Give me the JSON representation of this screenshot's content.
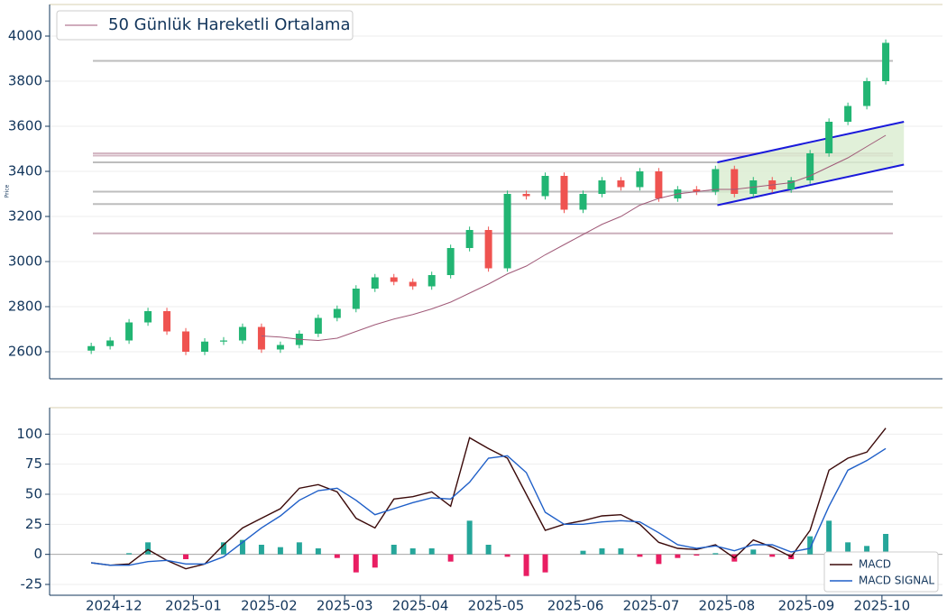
{
  "chart_data": [
    {
      "type": "candlestick",
      "y_label": "Price",
      "legend": "upper left",
      "x": [
        0,
        5,
        10,
        15,
        20,
        25,
        30,
        35,
        40,
        45,
        50,
        55,
        60,
        65,
        70,
        75,
        80,
        85,
        90,
        95,
        100,
        105,
        110,
        115,
        120,
        125,
        130,
        135,
        140,
        145,
        150,
        155,
        160,
        165,
        170,
        175,
        180,
        185,
        190,
        195,
        200,
        205,
        210
      ],
      "open": [
        2605,
        2625,
        2650,
        2730,
        2780,
        2690,
        2600,
        2645,
        2650,
        2710,
        2610,
        2630,
        2680,
        2750,
        2790,
        2880,
        2930,
        2910,
        2890,
        2940,
        3060,
        3140,
        2970,
        3300,
        3290,
        3380,
        3230,
        3300,
        3360,
        3330,
        3400,
        3280,
        3320,
        3310,
        3410,
        3300,
        3360,
        3320,
        3360,
        3480,
        3620,
        3690,
        3800
      ],
      "high": [
        2640,
        2665,
        2745,
        2795,
        2795,
        2705,
        2660,
        2665,
        2725,
        2725,
        2645,
        2695,
        2765,
        2805,
        2895,
        2945,
        2945,
        2925,
        2955,
        3075,
        3155,
        3155,
        3315,
        3315,
        3395,
        3395,
        3315,
        3375,
        3375,
        3415,
        3415,
        3335,
        3335,
        3425,
        3425,
        3375,
        3375,
        3375,
        3495,
        3635,
        3705,
        3815,
        3985
      ],
      "low": [
        2590,
        2610,
        2635,
        2715,
        2675,
        2585,
        2585,
        2630,
        2635,
        2595,
        2595,
        2615,
        2665,
        2735,
        2775,
        2865,
        2895,
        2875,
        2875,
        2925,
        3045,
        2955,
        2955,
        3275,
        3275,
        3215,
        3215,
        3285,
        3315,
        3315,
        3265,
        3265,
        3295,
        3295,
        3285,
        3285,
        3305,
        3305,
        3345,
        3465,
        3605,
        3675,
        3785
      ],
      "close": [
        2625,
        2650,
        2730,
        2780,
        2690,
        2600,
        2645,
        2650,
        2710,
        2610,
        2630,
        2680,
        2750,
        2790,
        2880,
        2930,
        2910,
        2890,
        2940,
        3060,
        3140,
        2970,
        3300,
        3290,
        3380,
        3230,
        3300,
        3360,
        3330,
        3400,
        3280,
        3320,
        3310,
        3410,
        3300,
        3360,
        3320,
        3360,
        3480,
        3620,
        3690,
        3800,
        3970
      ],
      "up_color": "#22b573",
      "down_color": "#ef5350",
      "series": [
        {
          "name": "50 Günlük Hareketli Ortalama",
          "color": "#a05a78",
          "values": [
            null,
            null,
            null,
            null,
            null,
            null,
            null,
            null,
            null,
            2670,
            2665,
            2655,
            2650,
            2660,
            2690,
            2720,
            2745,
            2765,
            2790,
            2820,
            2860,
            2900,
            2945,
            2980,
            3030,
            3075,
            3120,
            3165,
            3200,
            3250,
            3280,
            3300,
            3310,
            3320,
            3320,
            3330,
            3340,
            3350,
            3380,
            3420,
            3460,
            3510,
            3560
          ]
        }
      ],
      "levels": [
        {
          "value": 3890,
          "color": "#bdbdbd"
        },
        {
          "value": 3480,
          "color": "#d4b8c4"
        },
        {
          "value": 3470,
          "color": "#d4b8c4"
        },
        {
          "value": 3440,
          "color": "#bdbdbd"
        },
        {
          "value": 3310,
          "color": "#bdbdbd"
        },
        {
          "value": 3255,
          "color": "#bdbdbd"
        },
        {
          "value": 3125,
          "color": "#cbb0bc"
        }
      ],
      "channel": {
        "color": "#1a1adb",
        "fill": "#d9ecd0",
        "x": [
          165.5,
          214.8
        ],
        "upper": [
          3440,
          3620
        ],
        "lower": [
          3250,
          3430
        ]
      },
      "xlim": [
        -11,
        225
      ],
      "ylim": [
        2480,
        4140
      ],
      "yticks": [
        2600,
        2800,
        3000,
        3200,
        3400,
        3600,
        3800,
        4000
      ],
      "grid": true
    },
    {
      "type": "macd",
      "legend": "lower right",
      "x": [
        0,
        5,
        10,
        15,
        20,
        25,
        30,
        35,
        40,
        45,
        50,
        55,
        60,
        65,
        70,
        75,
        80,
        85,
        90,
        95,
        100,
        105,
        110,
        115,
        120,
        125,
        130,
        135,
        140,
        145,
        150,
        155,
        160,
        165,
        170,
        175,
        180,
        185,
        190,
        195,
        200,
        205,
        210
      ],
      "histogram": {
        "pos_color": "#26a69a",
        "neg_color": "#e91e63",
        "values": [
          0,
          0,
          1,
          10,
          0,
          -4,
          0,
          10,
          12,
          8,
          6,
          10,
          5,
          -3,
          -15,
          -11,
          8,
          5,
          5,
          -6,
          28,
          8,
          -2,
          -18,
          -15,
          0,
          3,
          5,
          5,
          -2,
          -8,
          -3,
          -1,
          1,
          -6,
          4,
          -2,
          -4,
          15,
          28,
          10,
          7,
          17
        ]
      },
      "series": [
        {
          "name": "MACD",
          "color": "#3b0a0a",
          "values": [
            -7,
            -9,
            -8,
            4,
            -5,
            -12,
            -8,
            8,
            22,
            30,
            38,
            55,
            58,
            52,
            30,
            22,
            46,
            48,
            52,
            40,
            97,
            88,
            80,
            50,
            20,
            25,
            28,
            32,
            33,
            25,
            10,
            5,
            4,
            8,
            -3,
            12,
            6,
            -2,
            20,
            70,
            80,
            85,
            105
          ]
        },
        {
          "name": "MACD SIGNAL",
          "color": "#1f5fc8",
          "values": [
            -7,
            -9,
            -9,
            -6,
            -5,
            -8,
            -8,
            -2,
            10,
            22,
            32,
            45,
            53,
            55,
            45,
            33,
            38,
            43,
            47,
            46,
            60,
            80,
            82,
            68,
            35,
            25,
            25,
            27,
            28,
            27,
            18,
            8,
            5,
            7,
            3,
            8,
            8,
            2,
            5,
            40,
            70,
            78,
            88
          ]
        }
      ],
      "xlim": [
        -11,
        225
      ],
      "ylim": [
        -34,
        122
      ],
      "yticks": [
        -25,
        0,
        25,
        50,
        75,
        100
      ],
      "grid": true,
      "xticks": [
        {
          "value": 6,
          "label": "2024-12"
        },
        {
          "value": 27,
          "label": "2025-01"
        },
        {
          "value": 47,
          "label": "2025-02"
        },
        {
          "value": 67,
          "label": "2025-03"
        },
        {
          "value": 87,
          "label": "2025-04"
        },
        {
          "value": 107,
          "label": "2025-05"
        },
        {
          "value": 128,
          "label": "2025-06"
        },
        {
          "value": 148,
          "label": "2025-07"
        },
        {
          "value": 168,
          "label": "2025-08"
        },
        {
          "value": 189,
          "label": "2025-09"
        },
        {
          "value": 209,
          "label": "2025-10"
        }
      ]
    }
  ]
}
